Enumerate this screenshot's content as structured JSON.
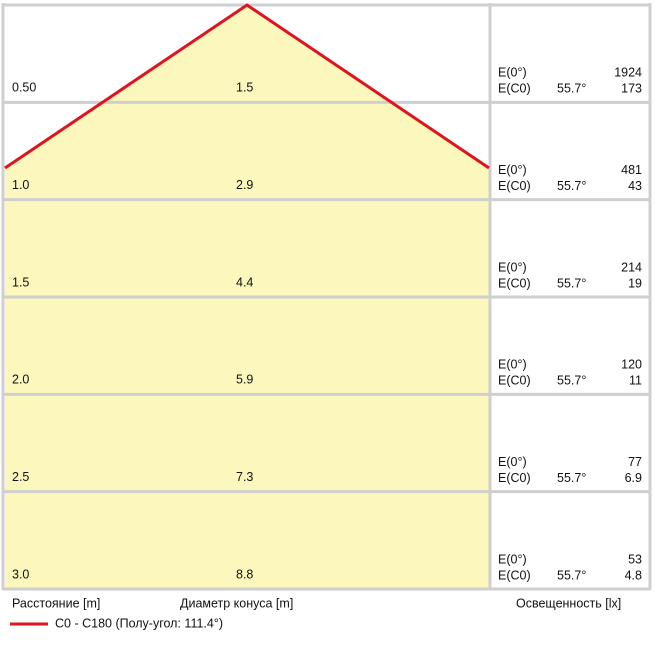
{
  "rows": [
    {
      "distance": "0.50",
      "diameter": "1.5",
      "e0_label": "E(0°)",
      "e0_value": "1924",
      "ec0_label": "E(C0)",
      "angle": "55.7°",
      "ec0_value": "173"
    },
    {
      "distance": "1.0",
      "diameter": "2.9",
      "e0_label": "E(0°)",
      "e0_value": "481",
      "ec0_label": "E(C0)",
      "angle": "55.7°",
      "ec0_value": "43"
    },
    {
      "distance": "1.5",
      "diameter": "4.4",
      "e0_label": "E(0°)",
      "e0_value": "214",
      "ec0_label": "E(C0)",
      "angle": "55.7°",
      "ec0_value": "19"
    },
    {
      "distance": "2.0",
      "diameter": "5.9",
      "e0_label": "E(0°)",
      "e0_value": "120",
      "ec0_label": "E(C0)",
      "angle": "55.7°",
      "ec0_value": "11"
    },
    {
      "distance": "2.5",
      "diameter": "7.3",
      "e0_label": "E(0°)",
      "e0_value": "77",
      "ec0_label": "E(C0)",
      "angle": "55.7°",
      "ec0_value": "6.9"
    },
    {
      "distance": "3.0",
      "diameter": "8.8",
      "e0_label": "E(0°)",
      "e0_value": "53",
      "ec0_label": "E(C0)",
      "angle": "55.7°",
      "ec0_value": "4.8"
    }
  ],
  "footer": {
    "distance_label": "Расстояние [m]",
    "diameter_label": "Диаметр конуса [m]",
    "illuminance_label": "Освещенность [lx]"
  },
  "legend": {
    "text": "C0 - C180 (Полу-угол: 111.4°)"
  }
}
